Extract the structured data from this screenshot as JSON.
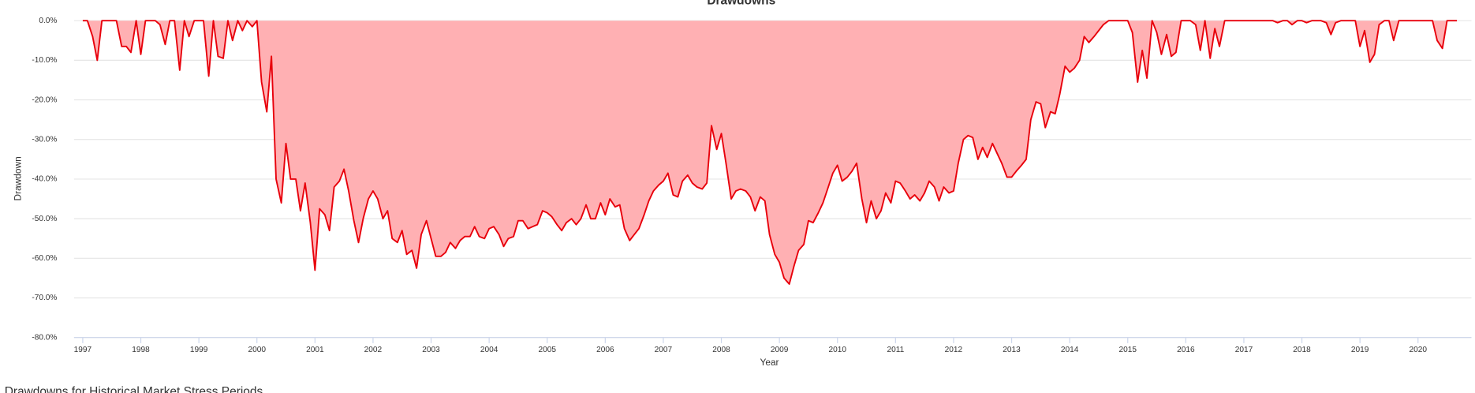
{
  "chart_data": {
    "type": "area",
    "title": "Drawdowns",
    "xlabel": "Year",
    "ylabel": "Drawdown",
    "footer": "Drawdowns for Historical Market Stress Periods",
    "line_color": "#e8000b",
    "fill_color": "#ffb0b3",
    "grid": true,
    "xlim": [
      1996.85,
      2020.92
    ],
    "xticks": [
      1997,
      1998,
      1999,
      2000,
      2001,
      2002,
      2003,
      2004,
      2005,
      2006,
      2007,
      2008,
      2009,
      2010,
      2011,
      2012,
      2013,
      2014,
      2015,
      2016,
      2017,
      2018,
      2019,
      2020
    ],
    "ylim": [
      -80,
      0
    ],
    "yticks": [
      {
        "value": 0,
        "label": "0.0%"
      },
      {
        "value": -10,
        "label": "-10.0%"
      },
      {
        "value": -20,
        "label": "-20.0%"
      },
      {
        "value": -30,
        "label": "-30.0%"
      },
      {
        "value": -40,
        "label": "-40.0%"
      },
      {
        "value": -50,
        "label": "-50.0%"
      },
      {
        "value": -60,
        "label": "-60.0%"
      },
      {
        "value": -70,
        "label": "-70.0%"
      },
      {
        "value": -80,
        "label": "-80.0%"
      }
    ],
    "x": [
      1997.0,
      1997.08,
      1997.17,
      1997.25,
      1997.33,
      1997.42,
      1997.5,
      1997.58,
      1997.67,
      1997.75,
      1997.83,
      1997.92,
      1998.0,
      1998.08,
      1998.17,
      1998.25,
      1998.33,
      1998.42,
      1998.5,
      1998.58,
      1998.67,
      1998.75,
      1998.83,
      1998.92,
      1999.0,
      1999.08,
      1999.17,
      1999.25,
      1999.33,
      1999.42,
      1999.5,
      1999.58,
      1999.67,
      1999.75,
      1999.83,
      1999.92,
      2000.0,
      2000.08,
      2000.17,
      2000.25,
      2000.33,
      2000.42,
      2000.5,
      2000.58,
      2000.67,
      2000.75,
      2000.83,
      2000.92,
      2001.0,
      2001.08,
      2001.17,
      2001.25,
      2001.33,
      2001.42,
      2001.5,
      2001.58,
      2001.67,
      2001.75,
      2001.83,
      2001.92,
      2002.0,
      2002.08,
      2002.17,
      2002.25,
      2002.33,
      2002.42,
      2002.5,
      2002.58,
      2002.67,
      2002.75,
      2002.83,
      2002.92,
      2003.0,
      2003.08,
      2003.17,
      2003.25,
      2003.33,
      2003.42,
      2003.5,
      2003.58,
      2003.67,
      2003.75,
      2003.83,
      2003.92,
      2004.0,
      2004.08,
      2004.17,
      2004.25,
      2004.33,
      2004.42,
      2004.5,
      2004.58,
      2004.67,
      2004.75,
      2004.83,
      2004.92,
      2005.0,
      2005.08,
      2005.17,
      2005.25,
      2005.33,
      2005.42,
      2005.5,
      2005.58,
      2005.67,
      2005.75,
      2005.83,
      2005.92,
      2006.0,
      2006.08,
      2006.17,
      2006.25,
      2006.33,
      2006.42,
      2006.5,
      2006.58,
      2006.67,
      2006.75,
      2006.83,
      2006.92,
      2007.0,
      2007.08,
      2007.17,
      2007.25,
      2007.33,
      2007.42,
      2007.5,
      2007.58,
      2007.67,
      2007.75,
      2007.83,
      2007.92,
      2008.0,
      2008.08,
      2008.17,
      2008.25,
      2008.33,
      2008.42,
      2008.5,
      2008.58,
      2008.67,
      2008.75,
      2008.83,
      2008.92,
      2009.0,
      2009.08,
      2009.17,
      2009.25,
      2009.33,
      2009.42,
      2009.5,
      2009.58,
      2009.67,
      2009.75,
      2009.83,
      2009.92,
      2010.0,
      2010.08,
      2010.17,
      2010.25,
      2010.33,
      2010.42,
      2010.5,
      2010.58,
      2010.67,
      2010.75,
      2010.83,
      2010.92,
      2011.0,
      2011.08,
      2011.17,
      2011.25,
      2011.33,
      2011.42,
      2011.5,
      2011.58,
      2011.67,
      2011.75,
      2011.83,
      2011.92,
      2012.0,
      2012.08,
      2012.17,
      2012.25,
      2012.33,
      2012.42,
      2012.5,
      2012.58,
      2012.67,
      2012.75,
      2012.83,
      2012.92,
      2013.0,
      2013.08,
      2013.17,
      2013.25,
      2013.33,
      2013.42,
      2013.5,
      2013.58,
      2013.67,
      2013.75,
      2013.83,
      2013.92,
      2014.0,
      2014.08,
      2014.17,
      2014.25,
      2014.33,
      2014.42,
      2014.5,
      2014.58,
      2014.67,
      2014.75,
      2014.83,
      2014.92,
      2015.0,
      2015.08,
      2015.17,
      2015.25,
      2015.33,
      2015.42,
      2015.5,
      2015.58,
      2015.67,
      2015.75,
      2015.83,
      2015.92,
      2016.0,
      2016.08,
      2016.17,
      2016.25,
      2016.33,
      2016.42,
      2016.5,
      2016.58,
      2016.67,
      2016.75,
      2016.83,
      2016.92,
      2017.0,
      2017.08,
      2017.17,
      2017.25,
      2017.33,
      2017.42,
      2017.5,
      2017.58,
      2017.67,
      2017.75,
      2017.83,
      2017.92,
      2018.0,
      2018.08,
      2018.17,
      2018.25,
      2018.33,
      2018.42,
      2018.5,
      2018.58,
      2018.67,
      2018.75,
      2018.83,
      2018.92,
      2019.0,
      2019.08,
      2019.17,
      2019.25,
      2019.33,
      2019.42,
      2019.5,
      2019.58,
      2019.67,
      2019.75,
      2019.83,
      2019.92,
      2020.0,
      2020.08,
      2020.17,
      2020.25,
      2020.33,
      2020.42,
      2020.5,
      2020.58,
      2020.67
    ],
    "values": [
      0,
      0,
      -4,
      -10,
      0,
      0,
      0,
      0,
      -6.5,
      -6.5,
      -8,
      0,
      -8.5,
      0,
      0,
      0,
      -1,
      -6,
      0,
      0,
      -12.5,
      0,
      -4,
      0,
      0,
      0,
      -14,
      0,
      -9,
      -9.5,
      0,
      -5,
      0,
      -2.5,
      0,
      -1.5,
      0,
      -15.5,
      -23,
      -9,
      -40,
      -46,
      -31,
      -40,
      -40,
      -48,
      -41,
      -51,
      -63,
      -47.5,
      -49,
      -53,
      -42,
      -40.5,
      -37.5,
      -43,
      -50.5,
      -56,
      -50,
      -45,
      -43,
      -45,
      -50,
      -48,
      -55,
      -56,
      -53,
      -59,
      -58,
      -62.5,
      -54,
      -50.5,
      -55,
      -59.5,
      -59.5,
      -58.5,
      -56,
      -57.5,
      -55.5,
      -54.5,
      -54.5,
      -52,
      -54.5,
      -55,
      -52.5,
      -52,
      -54,
      -57,
      -55,
      -54.5,
      -50.5,
      -50.5,
      -52.5,
      -52,
      -51.5,
      -48,
      -48.5,
      -49.5,
      -51.5,
      -53,
      -51,
      -50,
      -51.5,
      -50,
      -46.5,
      -50,
      -50,
      -46,
      -49,
      -45,
      -47,
      -46.5,
      -52.5,
      -55.5,
      -54,
      -52.5,
      -49,
      -45.5,
      -43,
      -41.5,
      -40.5,
      -38.5,
      -44,
      -44.5,
      -40.5,
      -39,
      -41,
      -42,
      -42.5,
      -41,
      -26.5,
      -32.5,
      -28.5,
      -36,
      -45,
      -43,
      -42.5,
      -43,
      -44.5,
      -48,
      -44.5,
      -45.5,
      -54,
      -59,
      -61,
      -65,
      -66.5,
      -62,
      -58,
      -56.5,
      -50.5,
      -51,
      -48.5,
      -46,
      -42.5,
      -38.5,
      -36.5,
      -40.5,
      -39.5,
      -38,
      -36,
      -45,
      -51,
      -45.5,
      -50,
      -48,
      -43.5,
      -46,
      -40.5,
      -41,
      -43,
      -45,
      -44,
      -45.5,
      -43.5,
      -40.5,
      -42,
      -45.5,
      -42,
      -43.5,
      -43,
      -36,
      -30,
      -29,
      -29.5,
      -35,
      -32,
      -34.5,
      -31,
      -33.5,
      -36,
      -39.5,
      -39.5,
      -38,
      -36.5,
      -35,
      -25,
      -20.5,
      -21,
      -27,
      -23,
      -23.5,
      -18.5,
      -11.5,
      -13,
      -12,
      -10,
      -4,
      -5.5,
      -4,
      -2.5,
      -1,
      0,
      0,
      0,
      0,
      0,
      -3,
      -15.5,
      -7.5,
      -14.5,
      0,
      -3,
      -8.5,
      -3.5,
      -9,
      -8,
      0,
      0,
      0,
      -1,
      -7.5,
      0,
      -9.5,
      -2,
      -6.5,
      0,
      0,
      0,
      0,
      0,
      0,
      0,
      0,
      0,
      0,
      0,
      -0.5,
      0,
      0,
      -1,
      0,
      0,
      -0.5,
      0,
      0,
      0,
      -0.5,
      -3.5,
      -0.5,
      0,
      0,
      0,
      0,
      -6.5,
      -2.5,
      -10.5,
      -8.5,
      -1,
      0,
      0,
      -5,
      0,
      0,
      0,
      0,
      0,
      0,
      0,
      0,
      -5,
      -7,
      0,
      0,
      0
    ]
  }
}
